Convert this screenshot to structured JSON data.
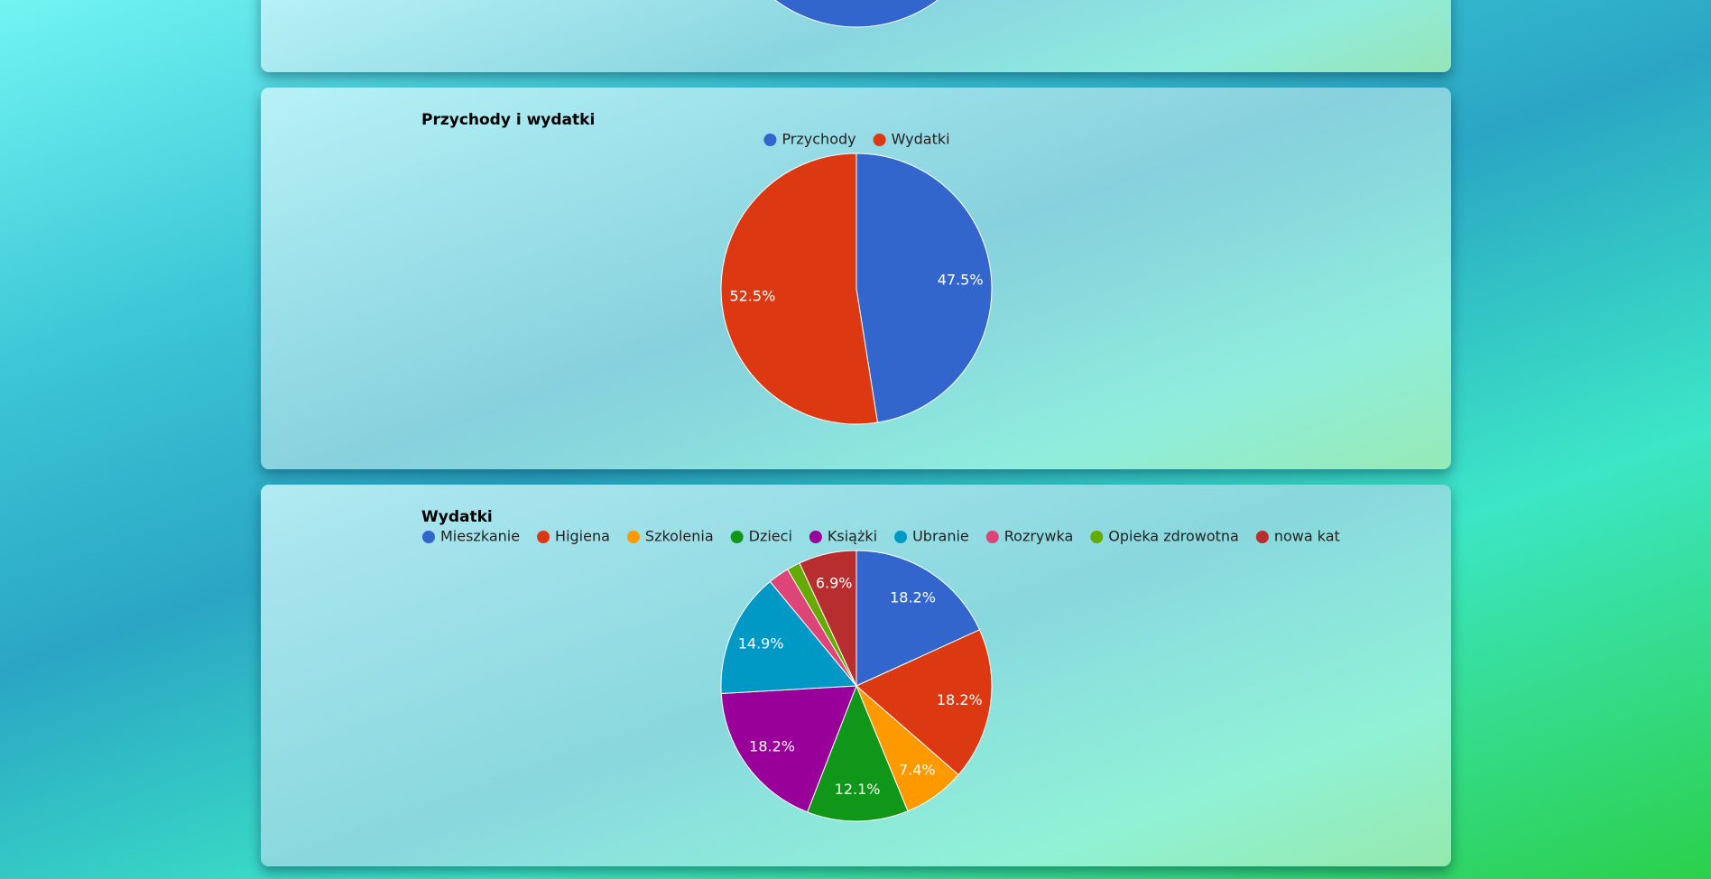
{
  "chart_data": [
    {
      "type": "pie",
      "title": "Przychody i wydatki",
      "categories": [
        "Przychody",
        "Wydatki"
      ],
      "values": [
        47.5,
        52.5
      ],
      "value_labels": [
        "47.5%",
        "52.5%"
      ],
      "colors": [
        "#3366cc",
        "#dc3912"
      ],
      "legend": "top-center"
    },
    {
      "type": "pie",
      "title": "Wydatki",
      "categories": [
        "Mieszkanie",
        "Higiena",
        "Szkolenia",
        "Dzieci",
        "Książki",
        "Ubranie",
        "Rozrywka",
        "Opieka zdrowotna",
        "nowa kat"
      ],
      "values": [
        18.2,
        18.2,
        7.4,
        12.1,
        18.2,
        14.9,
        2.5,
        1.6,
        6.9
      ],
      "value_labels": [
        "18.2%",
        "18.2%",
        "7.4%",
        "12.1%",
        "18.2%",
        "14.9%",
        null,
        null,
        "6.9%"
      ],
      "colors": [
        "#3366cc",
        "#dc3912",
        "#ff9900",
        "#109618",
        "#990099",
        "#0099c6",
        "#dd4477",
        "#66aa00",
        "#b82e2e"
      ],
      "legend": "top-left"
    }
  ]
}
